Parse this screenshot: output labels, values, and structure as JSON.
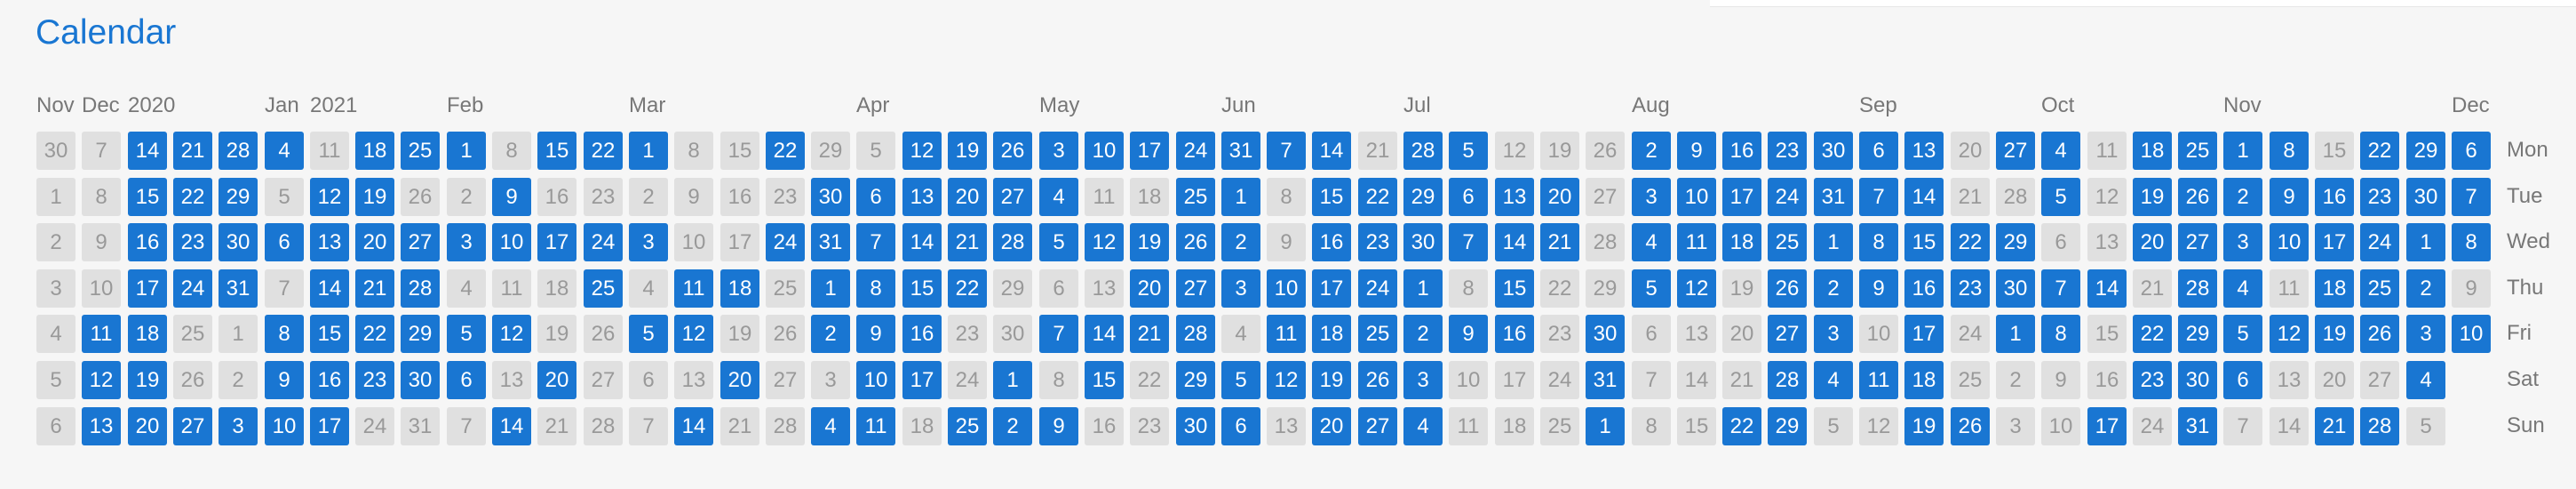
{
  "title": "Calendar",
  "colors": {
    "accent": "#1976d2",
    "inactive_cell": "#e0e0e0",
    "inactive_text": "#999999",
    "label_text": "#777777"
  },
  "month_labels": [
    {
      "label": "Nov",
      "week": 0
    },
    {
      "label": "Dec",
      "week": 1
    },
    {
      "label": "2020",
      "week": 2
    },
    {
      "label": "Jan",
      "week": 5
    },
    {
      "label": "2021",
      "week": 6
    },
    {
      "label": "Feb",
      "week": 9
    },
    {
      "label": "Mar",
      "week": 13
    },
    {
      "label": "Apr",
      "week": 18
    },
    {
      "label": "May",
      "week": 22
    },
    {
      "label": "Jun",
      "week": 26
    },
    {
      "label": "Jul",
      "week": 30
    },
    {
      "label": "Aug",
      "week": 35
    },
    {
      "label": "Sep",
      "week": 40
    },
    {
      "label": "Oct",
      "week": 44
    },
    {
      "label": "Nov",
      "week": 48
    },
    {
      "label": "Dec",
      "week": 53
    }
  ],
  "weekday_labels": [
    "Mon",
    "Tue",
    "Wed",
    "Thu",
    "Fri",
    "Sat",
    "Sun"
  ],
  "weeks": [
    [
      [
        30,
        0
      ],
      [
        1,
        0
      ],
      [
        2,
        0
      ],
      [
        3,
        0
      ],
      [
        4,
        0
      ],
      [
        5,
        0
      ],
      [
        6,
        0
      ]
    ],
    [
      [
        7,
        0
      ],
      [
        8,
        0
      ],
      [
        9,
        0
      ],
      [
        10,
        0
      ],
      [
        11,
        1
      ],
      [
        12,
        1
      ],
      [
        13,
        1
      ]
    ],
    [
      [
        14,
        1
      ],
      [
        15,
        1
      ],
      [
        16,
        1
      ],
      [
        17,
        1
      ],
      [
        18,
        1
      ],
      [
        19,
        1
      ],
      [
        20,
        1
      ]
    ],
    [
      [
        21,
        1
      ],
      [
        22,
        1
      ],
      [
        23,
        1
      ],
      [
        24,
        1
      ],
      [
        25,
        0
      ],
      [
        26,
        0
      ],
      [
        27,
        1
      ]
    ],
    [
      [
        28,
        1
      ],
      [
        29,
        1
      ],
      [
        30,
        1
      ],
      [
        31,
        1
      ],
      [
        1,
        0
      ],
      [
        2,
        0
      ],
      [
        3,
        1
      ]
    ],
    [
      [
        4,
        1
      ],
      [
        5,
        0
      ],
      [
        6,
        1
      ],
      [
        7,
        0
      ],
      [
        8,
        1
      ],
      [
        9,
        1
      ],
      [
        10,
        1
      ]
    ],
    [
      [
        11,
        0
      ],
      [
        12,
        1
      ],
      [
        13,
        1
      ],
      [
        14,
        1
      ],
      [
        15,
        1
      ],
      [
        16,
        1
      ],
      [
        17,
        1
      ]
    ],
    [
      [
        18,
        1
      ],
      [
        19,
        1
      ],
      [
        20,
        1
      ],
      [
        21,
        1
      ],
      [
        22,
        1
      ],
      [
        23,
        1
      ],
      [
        24,
        0
      ]
    ],
    [
      [
        25,
        1
      ],
      [
        26,
        0
      ],
      [
        27,
        1
      ],
      [
        28,
        1
      ],
      [
        29,
        1
      ],
      [
        30,
        1
      ],
      [
        31,
        0
      ]
    ],
    [
      [
        1,
        1
      ],
      [
        2,
        0
      ],
      [
        3,
        1
      ],
      [
        4,
        0
      ],
      [
        5,
        1
      ],
      [
        6,
        1
      ],
      [
        7,
        0
      ]
    ],
    [
      [
        8,
        0
      ],
      [
        9,
        1
      ],
      [
        10,
        1
      ],
      [
        11,
        0
      ],
      [
        12,
        1
      ],
      [
        13,
        0
      ],
      [
        14,
        1
      ]
    ],
    [
      [
        15,
        1
      ],
      [
        16,
        0
      ],
      [
        17,
        1
      ],
      [
        18,
        0
      ],
      [
        19,
        0
      ],
      [
        20,
        1
      ],
      [
        21,
        0
      ]
    ],
    [
      [
        22,
        1
      ],
      [
        23,
        0
      ],
      [
        24,
        1
      ],
      [
        25,
        1
      ],
      [
        26,
        0
      ],
      [
        27,
        0
      ],
      [
        28,
        0
      ]
    ],
    [
      [
        1,
        1
      ],
      [
        2,
        0
      ],
      [
        3,
        1
      ],
      [
        4,
        0
      ],
      [
        5,
        1
      ],
      [
        6,
        0
      ],
      [
        7,
        0
      ]
    ],
    [
      [
        8,
        0
      ],
      [
        9,
        0
      ],
      [
        10,
        0
      ],
      [
        11,
        1
      ],
      [
        12,
        1
      ],
      [
        13,
        0
      ],
      [
        14,
        1
      ]
    ],
    [
      [
        15,
        0
      ],
      [
        16,
        0
      ],
      [
        17,
        0
      ],
      [
        18,
        1
      ],
      [
        19,
        0
      ],
      [
        20,
        1
      ],
      [
        21,
        0
      ]
    ],
    [
      [
        22,
        1
      ],
      [
        23,
        0
      ],
      [
        24,
        1
      ],
      [
        25,
        0
      ],
      [
        26,
        0
      ],
      [
        27,
        0
      ],
      [
        28,
        0
      ]
    ],
    [
      [
        29,
        0
      ],
      [
        30,
        1
      ],
      [
        31,
        1
      ],
      [
        1,
        1
      ],
      [
        2,
        1
      ],
      [
        3,
        0
      ],
      [
        4,
        1
      ]
    ],
    [
      [
        5,
        0
      ],
      [
        6,
        1
      ],
      [
        7,
        1
      ],
      [
        8,
        1
      ],
      [
        9,
        1
      ],
      [
        10,
        1
      ],
      [
        11,
        1
      ]
    ],
    [
      [
        12,
        1
      ],
      [
        13,
        1
      ],
      [
        14,
        1
      ],
      [
        15,
        1
      ],
      [
        16,
        1
      ],
      [
        17,
        1
      ],
      [
        18,
        0
      ]
    ],
    [
      [
        19,
        1
      ],
      [
        20,
        1
      ],
      [
        21,
        1
      ],
      [
        22,
        1
      ],
      [
        23,
        0
      ],
      [
        24,
        0
      ],
      [
        25,
        1
      ]
    ],
    [
      [
        26,
        1
      ],
      [
        27,
        1
      ],
      [
        28,
        1
      ],
      [
        29,
        0
      ],
      [
        30,
        0
      ],
      [
        1,
        1
      ],
      [
        2,
        1
      ]
    ],
    [
      [
        3,
        1
      ],
      [
        4,
        1
      ],
      [
        5,
        1
      ],
      [
        6,
        0
      ],
      [
        7,
        1
      ],
      [
        8,
        0
      ],
      [
        9,
        1
      ]
    ],
    [
      [
        10,
        1
      ],
      [
        11,
        0
      ],
      [
        12,
        1
      ],
      [
        13,
        0
      ],
      [
        14,
        1
      ],
      [
        15,
        1
      ],
      [
        16,
        0
      ]
    ],
    [
      [
        17,
        1
      ],
      [
        18,
        0
      ],
      [
        19,
        1
      ],
      [
        20,
        1
      ],
      [
        21,
        1
      ],
      [
        22,
        0
      ],
      [
        23,
        0
      ]
    ],
    [
      [
        24,
        1
      ],
      [
        25,
        1
      ],
      [
        26,
        1
      ],
      [
        27,
        1
      ],
      [
        28,
        1
      ],
      [
        29,
        1
      ],
      [
        30,
        1
      ]
    ],
    [
      [
        31,
        1
      ],
      [
        1,
        1
      ],
      [
        2,
        1
      ],
      [
        3,
        1
      ],
      [
        4,
        0
      ],
      [
        5,
        1
      ],
      [
        6,
        1
      ]
    ],
    [
      [
        7,
        1
      ],
      [
        8,
        0
      ],
      [
        9,
        0
      ],
      [
        10,
        1
      ],
      [
        11,
        1
      ],
      [
        12,
        1
      ],
      [
        13,
        0
      ]
    ],
    [
      [
        14,
        1
      ],
      [
        15,
        1
      ],
      [
        16,
        1
      ],
      [
        17,
        1
      ],
      [
        18,
        1
      ],
      [
        19,
        1
      ],
      [
        20,
        1
      ]
    ],
    [
      [
        21,
        0
      ],
      [
        22,
        1
      ],
      [
        23,
        1
      ],
      [
        24,
        1
      ],
      [
        25,
        1
      ],
      [
        26,
        1
      ],
      [
        27,
        1
      ]
    ],
    [
      [
        28,
        1
      ],
      [
        29,
        1
      ],
      [
        30,
        1
      ],
      [
        1,
        1
      ],
      [
        2,
        1
      ],
      [
        3,
        1
      ],
      [
        4,
        1
      ]
    ],
    [
      [
        5,
        1
      ],
      [
        6,
        1
      ],
      [
        7,
        1
      ],
      [
        8,
        0
      ],
      [
        9,
        1
      ],
      [
        10,
        0
      ],
      [
        11,
        0
      ]
    ],
    [
      [
        12,
        0
      ],
      [
        13,
        1
      ],
      [
        14,
        1
      ],
      [
        15,
        1
      ],
      [
        16,
        1
      ],
      [
        17,
        0
      ],
      [
        18,
        0
      ]
    ],
    [
      [
        19,
        0
      ],
      [
        20,
        1
      ],
      [
        21,
        1
      ],
      [
        22,
        0
      ],
      [
        23,
        0
      ],
      [
        24,
        0
      ],
      [
        25,
        0
      ]
    ],
    [
      [
        26,
        0
      ],
      [
        27,
        0
      ],
      [
        28,
        0
      ],
      [
        29,
        0
      ],
      [
        30,
        1
      ],
      [
        31,
        1
      ],
      [
        1,
        1
      ]
    ],
    [
      [
        2,
        1
      ],
      [
        3,
        1
      ],
      [
        4,
        1
      ],
      [
        5,
        1
      ],
      [
        6,
        0
      ],
      [
        7,
        0
      ],
      [
        8,
        0
      ]
    ],
    [
      [
        9,
        1
      ],
      [
        10,
        1
      ],
      [
        11,
        1
      ],
      [
        12,
        1
      ],
      [
        13,
        0
      ],
      [
        14,
        0
      ],
      [
        15,
        0
      ]
    ],
    [
      [
        16,
        1
      ],
      [
        17,
        1
      ],
      [
        18,
        1
      ],
      [
        19,
        0
      ],
      [
        20,
        0
      ],
      [
        21,
        0
      ],
      [
        22,
        1
      ]
    ],
    [
      [
        23,
        1
      ],
      [
        24,
        1
      ],
      [
        25,
        1
      ],
      [
        26,
        1
      ],
      [
        27,
        1
      ],
      [
        28,
        1
      ],
      [
        29,
        1
      ]
    ],
    [
      [
        30,
        1
      ],
      [
        31,
        1
      ],
      [
        1,
        1
      ],
      [
        2,
        1
      ],
      [
        3,
        1
      ],
      [
        4,
        1
      ],
      [
        5,
        0
      ]
    ],
    [
      [
        6,
        1
      ],
      [
        7,
        1
      ],
      [
        8,
        1
      ],
      [
        9,
        1
      ],
      [
        10,
        0
      ],
      [
        11,
        1
      ],
      [
        12,
        0
      ]
    ],
    [
      [
        13,
        1
      ],
      [
        14,
        1
      ],
      [
        15,
        1
      ],
      [
        16,
        1
      ],
      [
        17,
        1
      ],
      [
        18,
        1
      ],
      [
        19,
        1
      ]
    ],
    [
      [
        20,
        0
      ],
      [
        21,
        0
      ],
      [
        22,
        1
      ],
      [
        23,
        1
      ],
      [
        24,
        0
      ],
      [
        25,
        0
      ],
      [
        26,
        1
      ]
    ],
    [
      [
        27,
        1
      ],
      [
        28,
        0
      ],
      [
        29,
        1
      ],
      [
        30,
        1
      ],
      [
        1,
        1
      ],
      [
        2,
        0
      ],
      [
        3,
        0
      ]
    ],
    [
      [
        4,
        1
      ],
      [
        5,
        1
      ],
      [
        6,
        0
      ],
      [
        7,
        1
      ],
      [
        8,
        1
      ],
      [
        9,
        0
      ],
      [
        10,
        0
      ]
    ],
    [
      [
        11,
        0
      ],
      [
        12,
        0
      ],
      [
        13,
        0
      ],
      [
        14,
        1
      ],
      [
        15,
        0
      ],
      [
        16,
        0
      ],
      [
        17,
        1
      ]
    ],
    [
      [
        18,
        1
      ],
      [
        19,
        1
      ],
      [
        20,
        1
      ],
      [
        21,
        0
      ],
      [
        22,
        1
      ],
      [
        23,
        1
      ],
      [
        24,
        0
      ]
    ],
    [
      [
        25,
        1
      ],
      [
        26,
        1
      ],
      [
        27,
        1
      ],
      [
        28,
        1
      ],
      [
        29,
        1
      ],
      [
        30,
        1
      ],
      [
        31,
        1
      ]
    ],
    [
      [
        1,
        1
      ],
      [
        2,
        1
      ],
      [
        3,
        1
      ],
      [
        4,
        1
      ],
      [
        5,
        1
      ],
      [
        6,
        1
      ],
      [
        7,
        0
      ]
    ],
    [
      [
        8,
        1
      ],
      [
        9,
        1
      ],
      [
        10,
        1
      ],
      [
        11,
        0
      ],
      [
        12,
        1
      ],
      [
        13,
        0
      ],
      [
        14,
        0
      ]
    ],
    [
      [
        15,
        0
      ],
      [
        16,
        1
      ],
      [
        17,
        1
      ],
      [
        18,
        1
      ],
      [
        19,
        1
      ],
      [
        20,
        0
      ],
      [
        21,
        1
      ]
    ],
    [
      [
        22,
        1
      ],
      [
        23,
        1
      ],
      [
        24,
        1
      ],
      [
        25,
        1
      ],
      [
        26,
        1
      ],
      [
        27,
        0
      ],
      [
        28,
        1
      ]
    ],
    [
      [
        29,
        1
      ],
      [
        30,
        1
      ],
      [
        1,
        1
      ],
      [
        2,
        1
      ],
      [
        3,
        1
      ],
      [
        4,
        1
      ],
      [
        5,
        0
      ]
    ],
    [
      [
        6,
        1
      ],
      [
        7,
        1
      ],
      [
        8,
        1
      ],
      [
        9,
        0
      ],
      [
        10,
        1
      ]
    ]
  ]
}
